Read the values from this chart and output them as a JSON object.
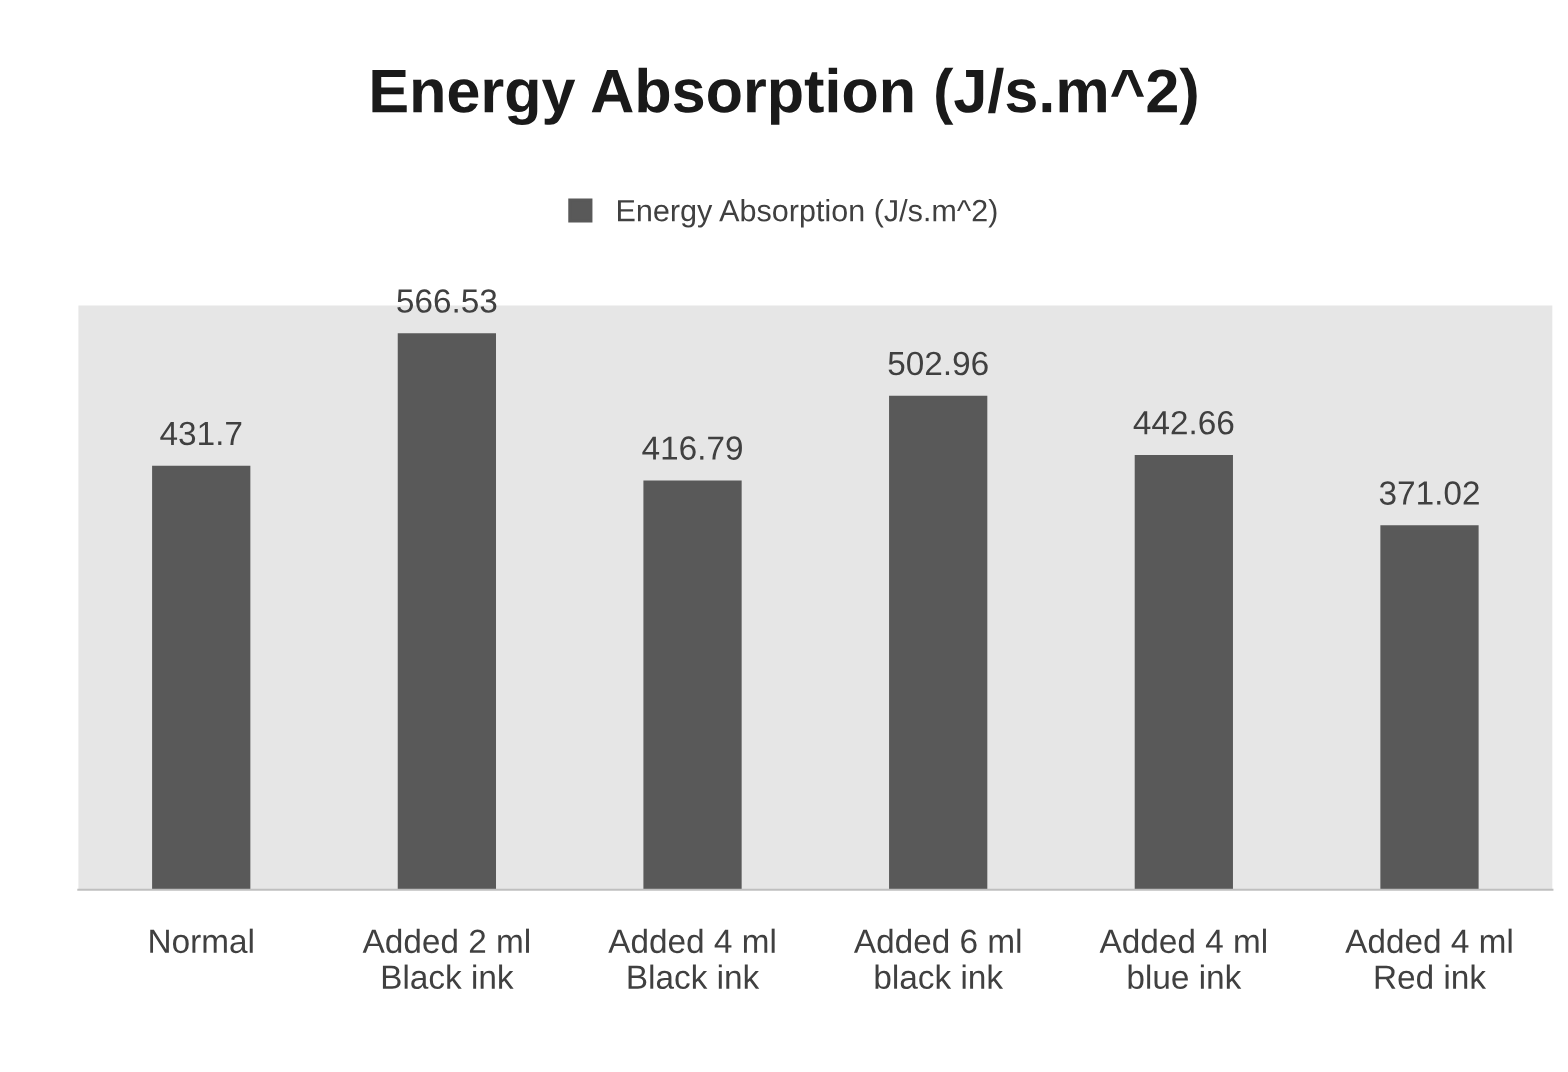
{
  "chart_data": {
    "type": "bar",
    "title": "Energy Absorption (J/s.m^2)",
    "categories": [
      "Normal",
      "Added 2 ml\nBlack ink",
      "Added 4 ml\nBlack ink",
      "Added 6 ml\nblack ink",
      "Added 4 ml\nblue ink",
      "Added 4 ml\nRed ink"
    ],
    "series": [
      {
        "name": "Energy Absorption (J/s.m^2)",
        "color": "#595959",
        "values": [
          431.7,
          566.53,
          416.79,
          502.96,
          442.66,
          371.02
        ]
      }
    ],
    "data_labels": true,
    "legend": "top",
    "grid": false,
    "tick_labels": "x"
  }
}
